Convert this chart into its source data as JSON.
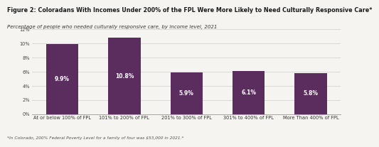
{
  "title": "Figure 2: Coloradans With Incomes Under 200% of the FPL Were More Likely to Need Culturally Responsive Care*",
  "subtitle": "Percentage of people who needed culturally responsive care, by income level, 2021",
  "footnote": "*In Colorado, 200% Federal Poverty Level for a family of four was $53,000 in 2021.*",
  "categories": [
    "At or below 100% of FPL",
    "101% to 200% of FPL",
    "201% to 300% of FPL",
    "301% to 400% of FPL",
    "More Than 400% of FPL"
  ],
  "values": [
    9.9,
    10.8,
    5.9,
    6.1,
    5.8
  ],
  "bar_color": "#5b2c5e",
  "label_color": "#ffffff",
  "ylim": [
    0,
    12
  ],
  "yticks": [
    0,
    2,
    4,
    6,
    8,
    10,
    12
  ],
  "ytick_labels": [
    "0%",
    "2%",
    "4%",
    "6%",
    "8%",
    "10%",
    "12%"
  ],
  "background_color": "#f5f4f0",
  "title_fontsize": 5.8,
  "subtitle_fontsize": 5.0,
  "footnote_fontsize": 4.2,
  "bar_label_fontsize": 5.5,
  "tick_fontsize": 4.8,
  "bar_width": 0.52
}
